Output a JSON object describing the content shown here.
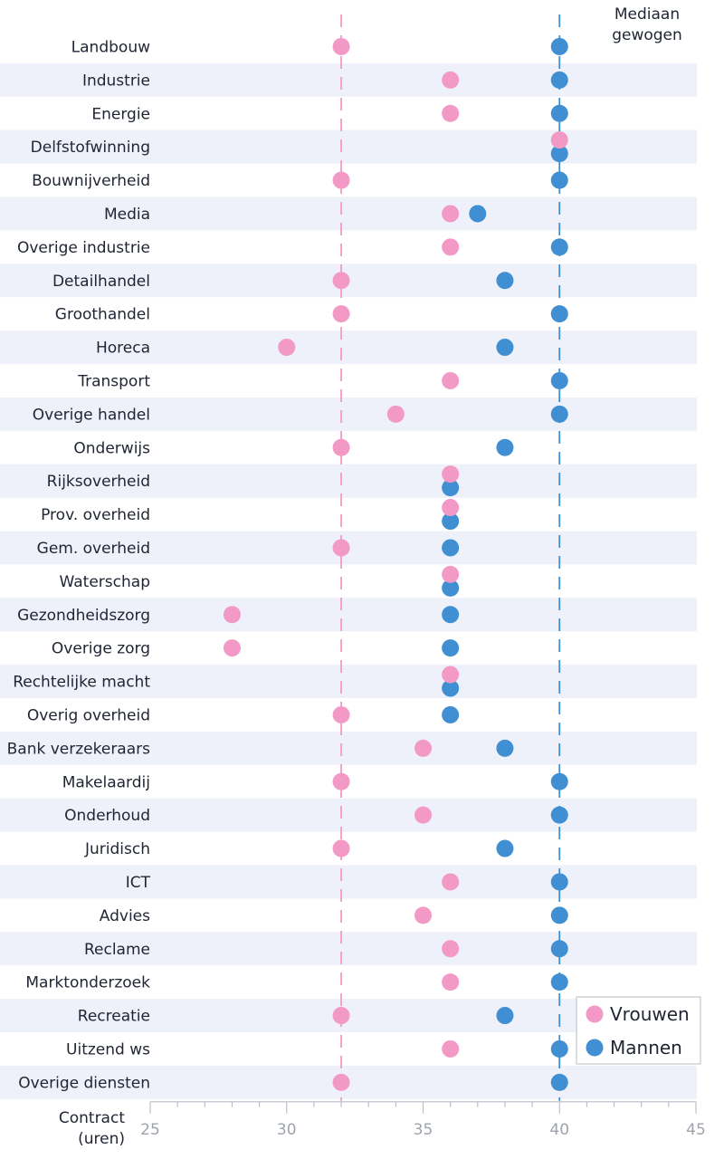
{
  "chart_data": {
    "type": "scatter",
    "categories": [
      "Landbouw",
      "Industrie",
      "Energie",
      "Delfstofwinning",
      "Bouwnijverheid",
      "Media",
      "Overige industrie",
      "Detailhandel",
      "Groothandel",
      "Horeca",
      "Transport",
      "Overige handel",
      "Onderwijs",
      "Rijksoverheid",
      "Prov. overheid",
      "Gem. overheid",
      "Waterschap",
      "Gezondheidszorg",
      "Overige zorg",
      "Rechtelijke macht",
      "Overig overheid",
      "Bank verzekeraars",
      "Makelaardij",
      "Onderhoud",
      "Juridisch",
      "ICT",
      "Advies",
      "Reclame",
      "Marktonderzoek",
      "Recreatie",
      "Uitzend ws",
      "Overige diensten"
    ],
    "series": [
      {
        "name": "Vrouwen",
        "color": "#f29ac5",
        "values": [
          32,
          36,
          36,
          40,
          32,
          36,
          36,
          32,
          32,
          30,
          36,
          34,
          32,
          36,
          36,
          32,
          36,
          28,
          28,
          36,
          32,
          35,
          32,
          35,
          32,
          36,
          35,
          36,
          36,
          32,
          36,
          32
        ]
      },
      {
        "name": "Mannen",
        "color": "#3f8fd2",
        "values": [
          40,
          40,
          40,
          40,
          40,
          37,
          40,
          38,
          40,
          38,
          40,
          40,
          38,
          36,
          36,
          36,
          36,
          36,
          36,
          36,
          36,
          38,
          40,
          40,
          38,
          40,
          40,
          40,
          40,
          38,
          40,
          40
        ]
      }
    ],
    "xlabel": "Contract (uren)",
    "xlim": [
      25,
      45
    ],
    "xticks": [
      "25",
      "30",
      "35",
      "40",
      "45"
    ],
    "median_label": "Mediaan gewogen",
    "reference_lines": [
      {
        "value": 32,
        "color": "#f29ac5"
      },
      {
        "value": 40,
        "color": "#3f8fd2"
      }
    ],
    "legend_position": "bottom-right",
    "row_band_color": "#eef0fa"
  }
}
